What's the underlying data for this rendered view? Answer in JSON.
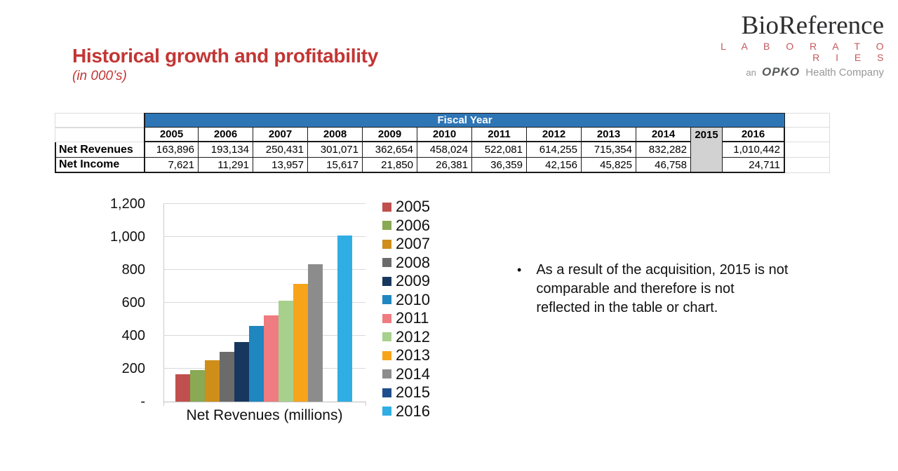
{
  "slide": {
    "title": "Historical growth and profitability",
    "subtitle": "(in 000’s)"
  },
  "logo": {
    "brand": "BioReference",
    "sub_brand": "L A B O R A T O R I E S",
    "tagline_prefix": "an",
    "tagline_brand": "OPKO",
    "tagline_suffix": "Health Company"
  },
  "table": {
    "header": "Fiscal Year",
    "years": [
      "2005",
      "2006",
      "2007",
      "2008",
      "2009",
      "2010",
      "2011",
      "2012",
      "2013",
      "2014",
      "2015",
      "2016"
    ],
    "rows": [
      {
        "label": "Net Revenues",
        "values": [
          "163,896",
          "193,134",
          "250,431",
          "301,071",
          "362,654",
          "458,024",
          "522,081",
          "614,255",
          "715,354",
          "832,282",
          "",
          "1,010,442"
        ]
      },
      {
        "label": "Net Income",
        "values": [
          "7,621",
          "11,291",
          "13,957",
          "15,617",
          "21,850",
          "26,381",
          "36,359",
          "42,156",
          "45,825",
          "46,758",
          "",
          "24,711"
        ]
      }
    ],
    "muted_year_index": 10,
    "colors": {
      "header_bg": "#2E75B6",
      "header_text": "#FFFFFF",
      "muted_bg": "#D2D2D2"
    }
  },
  "chart_data": {
    "type": "bar",
    "title": "",
    "xlabel": "Net Revenues (millions)",
    "ylabel": "",
    "ylim": [
      0,
      1200
    ],
    "ytick_labels": [
      "-",
      "200",
      "400",
      "600",
      "800",
      "1,000",
      "1,200"
    ],
    "grid": true,
    "legend_position": "right",
    "categories": [
      "2005",
      "2006",
      "2007",
      "2008",
      "2009",
      "2010",
      "2011",
      "2012",
      "2013",
      "2014",
      "2015",
      "2016"
    ],
    "values": [
      164,
      193,
      250,
      301,
      363,
      458,
      522,
      614,
      715,
      832,
      null,
      1010
    ],
    "colors": [
      "#C0504D",
      "#89A954",
      "#CE8E19",
      "#6B6B6B",
      "#17375E",
      "#1F86C0",
      "#EE7C80",
      "#A8D08D",
      "#F8A41B",
      "#8C8C8C",
      "#1F4E8C",
      "#30AEE4"
    ]
  },
  "note": {
    "marker": "•",
    "lines": [
      "As a result of the acquisition, 2015 is not",
      "comparable and therefore is not",
      "reflected in the table or chart."
    ]
  }
}
